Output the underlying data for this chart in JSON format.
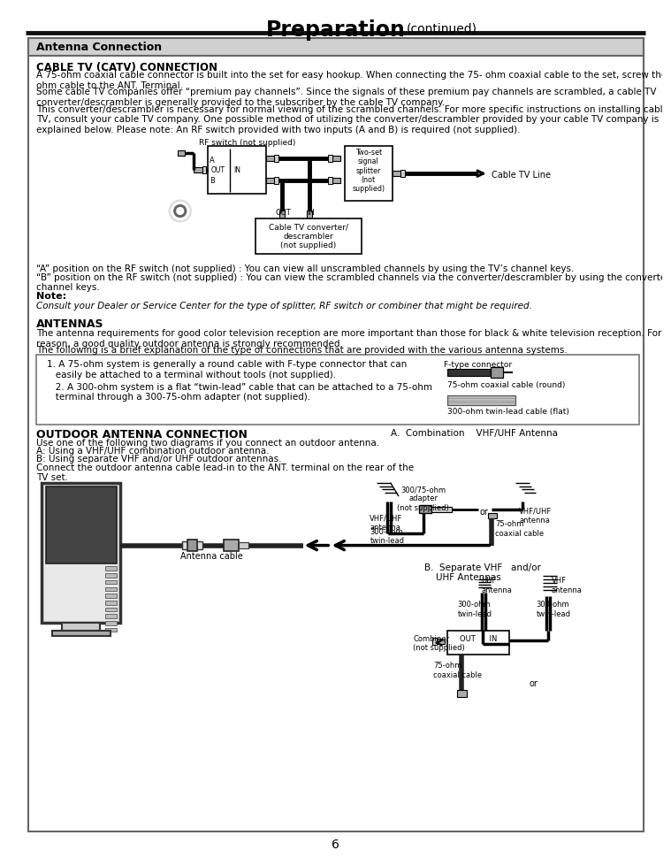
{
  "title": "Preparation",
  "title_continued": "(continued)",
  "page_number": "6",
  "section_header": "Antenna Connection",
  "catv_title": "CABLE TV (CATV) CONNECTION",
  "catv_text1": "A 75-ohm coaxial cable connector is built into the set for easy hookup. When connecting the 75- ohm coaxial cable to the set, screw the 75-\nohm cable to the ANT. Terminal.",
  "catv_text2": "Some cable TV companies offer “premium pay channels”. Since the signals of these premium pay channels are scrambled, a cable TV\nconverter/descrambler is generally provided to the subscriber by the cable TV company.",
  "catv_text3": "This converter/descrambler is necessary for normal viewing of the scrambled channels. For more specific instructions on installing cable\nTV, consult your cable TV company. One possible method of utilizing the converter/descrambler provided by your cable TV company is\nexplained below. Please note: An RF switch provided with two inputs (A and B) is required (not supplied).",
  "pos_a_text": "“A” position on the RF switch (not supplied) : You can view all unscrambled channels by using the TV’s channel keys.",
  "pos_b_text": "“B” position on the RF switch (not supplied) : You can view the scrambled channels via the converter/descrambler by using the converter’s\nchannel keys.",
  "note_label": "Note:",
  "note_text": "Consult your Dealer or Service Center for the type of splitter, RF switch or combiner that might be required.",
  "antennas_title": "ANTENNAS",
  "antennas_text1": "The antenna requirements for good color television reception are more important than those for black & white television reception. For this\nreason, a good quality outdoor antenna is strongly recommended.",
  "antennas_text2": "The following is a brief explanation of the type of connections that are provided with the various antenna systems.",
  "antenna_box_text1": "1. A 75-ohm system is generally a round cable with F-type connector that can\n   easily be attached to a terminal without tools (not supplied).",
  "antenna_box_text2": "   2. A 300-ohm system is a flat “twin-lead” cable that can be attached to a 75-ohm\n   terminal through a 300-75-ohm adapter (not supplied).",
  "ftype_label": "F-type connector",
  "coaxial_label": "75-ohm coaxial cable (round)",
  "twinlead_label": "300-ohm twin-lead cable (flat)",
  "outdoor_title": "OUTDOOR ANTENNA CONNECTION",
  "outdoor_text1": "Use one of the following two diagrams if you connect an outdoor antenna.",
  "outdoor_text2": "A: Using a VHF/UHF combination outdoor antenna.",
  "outdoor_text3": "B: Using separate VHF and/or UHF outdoor antennas.",
  "outdoor_text4": "Connect the outdoor antenna cable lead-in to the ANT. terminal on the rear of the\nTV set.",
  "antenna_cable_label": "Antenna cable",
  "combo_label": "A.  Combination    VHF/UHF Antenna",
  "adapter_label": "300/75-ohm\nadapter\n(not supplied)",
  "vhfuhf_ant_label": "VHF/UHF\nantenna",
  "vhfuhf_left_label": "VHF/UHF\nantenna",
  "ohm300_twin_label": "300-ohm\ntwin-lead",
  "ohm75_coax_label": "75-ohm\ncoaxial cable",
  "or_label": "or",
  "separate_label": "B.  Separate VHF   and/or\n    UHF Antennas",
  "uhf_ant_label": "UHF\nantenna",
  "vhf_ant_label": "VHF\nantenna",
  "ohm300_a_label": "300-ohm\ntwin-lead",
  "ohm300_b_label": "300-ohm\ntwin-lead",
  "combiner_label": "Combiner\n(not supplied)",
  "out_in_label": "OUT      IN",
  "ohm75_b_label": "75-ohm\ncoaxial cable",
  "or_b_label": "or",
  "rf_switch_label": "RF switch (not supplied)",
  "two_set_label": "Two-set\nsignal\nsplitter\n(not\nsupplied)",
  "cable_tv_line_label": "Cable TV Line",
  "out_label": "OUT",
  "in_label": "IN",
  "a_label": "A",
  "b_label": "B",
  "out2_label": "OUT",
  "in2_label": "IN",
  "cable_tv_conv_label": "Cable TV converter/\ndescrambler\n(not supplied)",
  "bg_color": "#ffffff"
}
